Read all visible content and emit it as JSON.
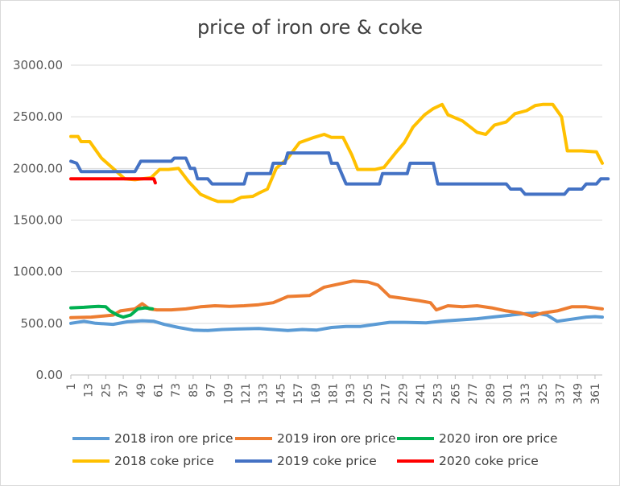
{
  "chart_data": {
    "type": "line",
    "title": "price of iron ore & coke",
    "xlabel": "",
    "ylabel": "",
    "ylim": [
      0,
      3000
    ],
    "xlim": [
      1,
      366
    ],
    "y_ticks": [
      "0.00",
      "500.00",
      "1000.00",
      "1500.00",
      "2000.00",
      "2500.00",
      "3000.00"
    ],
    "x_ticks": [
      1,
      13,
      25,
      37,
      49,
      61,
      73,
      85,
      97,
      109,
      121,
      133,
      145,
      157,
      169,
      181,
      193,
      205,
      217,
      229,
      241,
      253,
      265,
      277,
      289,
      301,
      313,
      325,
      337,
      349,
      361
    ],
    "grid": "horizontal",
    "legend_position": "bottom",
    "series": [
      {
        "name": "2018 iron ore price",
        "color": "#5B9BD5",
        "points": [
          [
            1,
            500
          ],
          [
            10,
            520
          ],
          [
            18,
            500
          ],
          [
            30,
            490
          ],
          [
            40,
            515
          ],
          [
            50,
            525
          ],
          [
            58,
            520
          ],
          [
            65,
            490
          ],
          [
            75,
            460
          ],
          [
            85,
            435
          ],
          [
            95,
            430
          ],
          [
            105,
            440
          ],
          [
            115,
            445
          ],
          [
            130,
            450
          ],
          [
            140,
            440
          ],
          [
            150,
            430
          ],
          [
            160,
            440
          ],
          [
            170,
            435
          ],
          [
            180,
            460
          ],
          [
            190,
            470
          ],
          [
            200,
            470
          ],
          [
            210,
            490
          ],
          [
            220,
            510
          ],
          [
            230,
            510
          ],
          [
            245,
            505
          ],
          [
            255,
            520
          ],
          [
            265,
            530
          ],
          [
            280,
            545
          ],
          [
            290,
            560
          ],
          [
            300,
            575
          ],
          [
            310,
            590
          ],
          [
            320,
            600
          ],
          [
            328,
            580
          ],
          [
            335,
            520
          ],
          [
            345,
            540
          ],
          [
            355,
            560
          ],
          [
            361,
            565
          ],
          [
            366,
            560
          ]
        ]
      },
      {
        "name": "2019 iron ore price",
        "color": "#ED7D31",
        "points": [
          [
            1,
            555
          ],
          [
            15,
            560
          ],
          [
            30,
            580
          ],
          [
            35,
            620
          ],
          [
            45,
            640
          ],
          [
            50,
            690
          ],
          [
            55,
            640
          ],
          [
            60,
            630
          ],
          [
            70,
            630
          ],
          [
            80,
            640
          ],
          [
            90,
            660
          ],
          [
            100,
            670
          ],
          [
            110,
            665
          ],
          [
            120,
            670
          ],
          [
            130,
            680
          ],
          [
            140,
            700
          ],
          [
            150,
            760
          ],
          [
            165,
            770
          ],
          [
            175,
            850
          ],
          [
            185,
            880
          ],
          [
            195,
            910
          ],
          [
            205,
            900
          ],
          [
            212,
            870
          ],
          [
            220,
            760
          ],
          [
            230,
            740
          ],
          [
            240,
            720
          ],
          [
            248,
            700
          ],
          [
            252,
            630
          ],
          [
            260,
            670
          ],
          [
            270,
            660
          ],
          [
            280,
            670
          ],
          [
            290,
            650
          ],
          [
            300,
            620
          ],
          [
            310,
            600
          ],
          [
            318,
            570
          ],
          [
            325,
            600
          ],
          [
            335,
            620
          ],
          [
            345,
            660
          ],
          [
            355,
            660
          ],
          [
            366,
            640
          ]
        ]
      },
      {
        "name": "2020 iron ore price",
        "color": "#00B050",
        "points": [
          [
            1,
            650
          ],
          [
            10,
            655
          ],
          [
            15,
            660
          ],
          [
            20,
            665
          ],
          [
            25,
            660
          ],
          [
            28,
            620
          ],
          [
            33,
            580
          ],
          [
            37,
            560
          ],
          [
            42,
            580
          ],
          [
            47,
            640
          ],
          [
            52,
            650
          ],
          [
            57,
            640
          ]
        ]
      },
      {
        "name": "2018 coke price",
        "color": "#FFC000",
        "points": [
          [
            1,
            2310
          ],
          [
            6,
            2310
          ],
          [
            8,
            2260
          ],
          [
            14,
            2260
          ],
          [
            17,
            2200
          ],
          [
            22,
            2100
          ],
          [
            30,
            2000
          ],
          [
            38,
            1900
          ],
          [
            45,
            1890
          ],
          [
            56,
            1910
          ],
          [
            62,
            1990
          ],
          [
            68,
            1990
          ],
          [
            75,
            2000
          ],
          [
            82,
            1870
          ],
          [
            90,
            1750
          ],
          [
            98,
            1700
          ],
          [
            102,
            1680
          ],
          [
            112,
            1680
          ],
          [
            118,
            1720
          ],
          [
            126,
            1730
          ],
          [
            130,
            1760
          ],
          [
            136,
            1800
          ],
          [
            142,
            2000
          ],
          [
            150,
            2100
          ],
          [
            158,
            2250
          ],
          [
            168,
            2300
          ],
          [
            175,
            2330
          ],
          [
            180,
            2300
          ],
          [
            188,
            2300
          ],
          [
            194,
            2130
          ],
          [
            198,
            1990
          ],
          [
            210,
            1990
          ],
          [
            216,
            2010
          ],
          [
            224,
            2150
          ],
          [
            230,
            2250
          ],
          [
            236,
            2400
          ],
          [
            244,
            2520
          ],
          [
            250,
            2580
          ],
          [
            256,
            2620
          ],
          [
            260,
            2520
          ],
          [
            270,
            2460
          ],
          [
            280,
            2350
          ],
          [
            286,
            2330
          ],
          [
            292,
            2420
          ],
          [
            300,
            2450
          ],
          [
            306,
            2530
          ],
          [
            314,
            2560
          ],
          [
            320,
            2610
          ],
          [
            325,
            2620
          ],
          [
            332,
            2620
          ],
          [
            338,
            2500
          ],
          [
            342,
            2170
          ],
          [
            352,
            2170
          ],
          [
            362,
            2160
          ],
          [
            366,
            2050
          ]
        ]
      },
      {
        "name": "2019 coke price",
        "color": "#4472C4",
        "points": [
          [
            1,
            2070
          ],
          [
            5,
            2050
          ],
          [
            8,
            1970
          ],
          [
            20,
            1970
          ],
          [
            35,
            1970
          ],
          [
            45,
            1970
          ],
          [
            49,
            2070
          ],
          [
            70,
            2070
          ],
          [
            72,
            2100
          ],
          [
            80,
            2100
          ],
          [
            83,
            2000
          ],
          [
            86,
            2000
          ],
          [
            88,
            1900
          ],
          [
            95,
            1900
          ],
          [
            98,
            1850
          ],
          [
            120,
            1850
          ],
          [
            122,
            1950
          ],
          [
            138,
            1950
          ],
          [
            140,
            2050
          ],
          [
            148,
            2050
          ],
          [
            150,
            2150
          ],
          [
            178,
            2150
          ],
          [
            180,
            2050
          ],
          [
            184,
            2050
          ],
          [
            187,
            1950
          ],
          [
            190,
            1850
          ],
          [
            213,
            1850
          ],
          [
            215,
            1950
          ],
          [
            232,
            1950
          ],
          [
            234,
            2050
          ],
          [
            250,
            2050
          ],
          [
            253,
            1850
          ],
          [
            300,
            1850
          ],
          [
            303,
            1800
          ],
          [
            310,
            1800
          ],
          [
            313,
            1750
          ],
          [
            340,
            1750
          ],
          [
            343,
            1800
          ],
          [
            352,
            1800
          ],
          [
            355,
            1850
          ],
          [
            362,
            1850
          ],
          [
            365,
            1900
          ],
          [
            370,
            1900
          ]
        ]
      },
      {
        "name": "2020 coke price",
        "color": "#FF0000",
        "points": [
          [
            1,
            1900
          ],
          [
            20,
            1900
          ],
          [
            40,
            1900
          ],
          [
            58,
            1900
          ],
          [
            59,
            1860
          ]
        ]
      }
    ]
  }
}
